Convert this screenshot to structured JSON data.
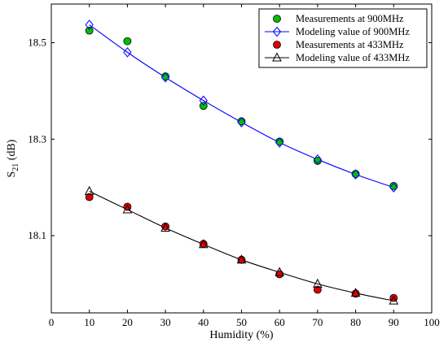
{
  "chart_data": {
    "type": "scatter",
    "xlabel": "Humidity (%)",
    "ylabel": {
      "main": "S",
      "sub": "21",
      "unit": " (dB)"
    },
    "xlim": [
      0,
      100
    ],
    "ylim": [
      17.94,
      18.58
    ],
    "xticks": [
      0,
      10,
      20,
      30,
      40,
      50,
      60,
      70,
      80,
      90,
      100
    ],
    "yticks": [
      18.1,
      18.3,
      18.5
    ],
    "ytick_labels": [
      "18.1",
      "18.3",
      "18.5"
    ],
    "grid": false,
    "legend_position": "top-right",
    "x": [
      10,
      20,
      30,
      40,
      50,
      60,
      70,
      80,
      90
    ],
    "series": [
      {
        "name": "Measurements at 900MHz",
        "kind": "measure",
        "marker": "circle",
        "color": "#00c000",
        "values": [
          18.525,
          18.503,
          18.43,
          18.369,
          18.337,
          18.295,
          18.255,
          18.228,
          18.203
        ]
      },
      {
        "name": "Modeling value of 900MHz",
        "kind": "model",
        "marker": "diamond",
        "color": "#0000ff",
        "values": [
          18.537,
          18.48,
          18.428,
          18.38,
          18.335,
          18.293,
          18.258,
          18.227,
          18.2
        ]
      },
      {
        "name": "Measurements at 433MHz",
        "kind": "measure",
        "marker": "circle",
        "color": "#e00000",
        "values": [
          18.18,
          18.16,
          18.119,
          18.083,
          18.05,
          18.02,
          17.988,
          17.98,
          17.971
        ]
      },
      {
        "name": "Modeling value of 433MHz",
        "kind": "model",
        "marker": "triangle",
        "color": "#000000",
        "values": [
          18.192,
          18.154,
          18.116,
          18.082,
          18.05,
          18.024,
          18.0,
          17.981,
          17.965
        ]
      }
    ]
  }
}
